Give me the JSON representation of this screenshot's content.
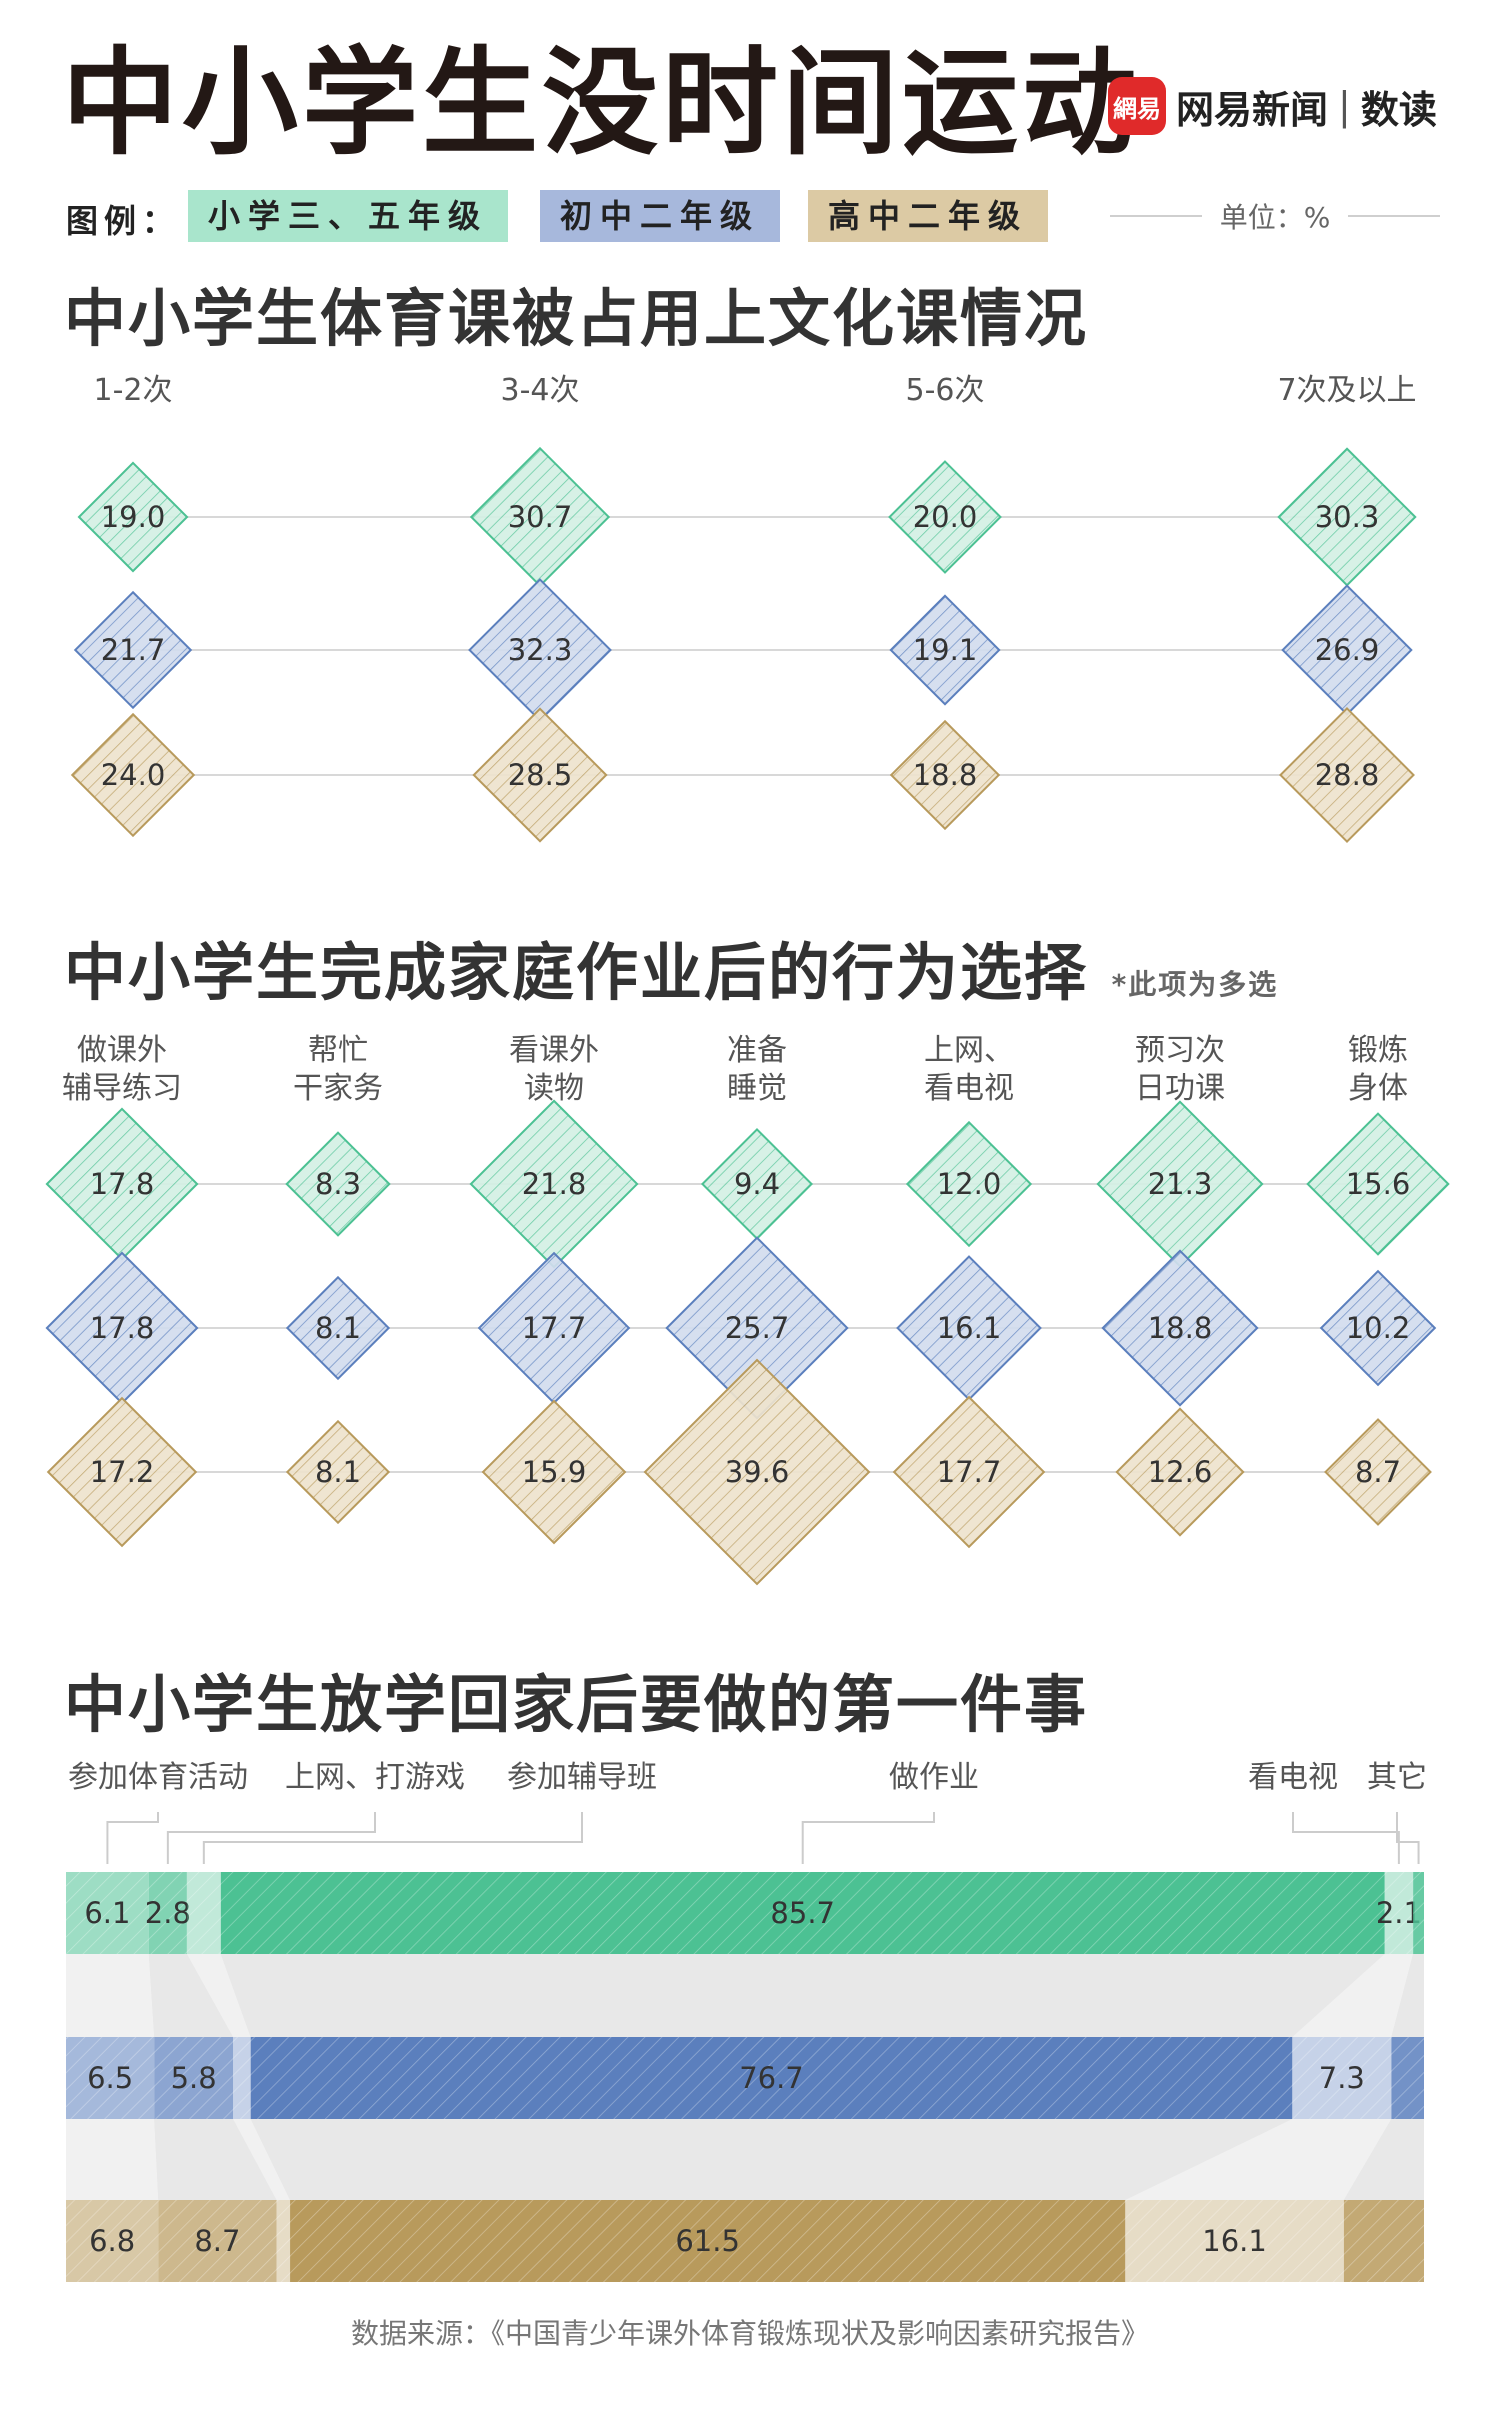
{
  "title": "中小学生没时间运动",
  "brand": {
    "logo_text": "網易",
    "name": "网易新闻",
    "divider": "|",
    "sub": "数读"
  },
  "legend": {
    "label": "图例：",
    "items": [
      {
        "label": "小学三、五年级",
        "color": "#4cc193",
        "box_color": "#a9e5cc"
      },
      {
        "label": "初中二年级",
        "color": "#5b7fbd",
        "box_color": "#a7b8dc"
      },
      {
        "label": "高中二年级",
        "color": "#b89a5c",
        "box_color": "#dccaa4"
      }
    ]
  },
  "unit": "单位：%",
  "source": "数据来源：《中国青少年课外体育锻炼现状及影响因素研究报告》",
  "chart_data": [
    {
      "type": "scatter",
      "title": "中小学生体育课被占用上文化课情况",
      "categories": [
        "1-2次",
        "3-4次",
        "5-6次",
        "7次及以上"
      ],
      "series": [
        {
          "name": "小学三、五年级",
          "values": [
            19.0,
            30.7,
            20.0,
            30.3
          ]
        },
        {
          "name": "初中二年级",
          "values": [
            21.7,
            32.3,
            19.1,
            26.9
          ]
        },
        {
          "name": "高中二年级",
          "values": [
            24.0,
            28.5,
            18.8,
            28.8
          ]
        }
      ]
    },
    {
      "type": "scatter",
      "title": "中小学生完成家庭作业后的行为选择",
      "note": "*此项为多选",
      "categories": [
        "做课外\n辅导练习",
        "帮忙\n干家务",
        "看课外\n读物",
        "准备\n睡觉",
        "上网、\n看电视",
        "预习次\n日功课",
        "锻炼\n身体"
      ],
      "series": [
        {
          "name": "小学三、五年级",
          "values": [
            17.8,
            8.3,
            21.8,
            9.4,
            12.0,
            21.3,
            15.6
          ]
        },
        {
          "name": "初中二年级",
          "values": [
            17.8,
            8.1,
            17.7,
            25.7,
            16.1,
            18.8,
            10.2
          ]
        },
        {
          "name": "高中二年级",
          "values": [
            17.2,
            8.1,
            15.9,
            39.6,
            17.7,
            12.6,
            8.7
          ]
        }
      ]
    },
    {
      "type": "bar",
      "stacked": true,
      "title": "中小学生放学回家后要做的第一件事",
      "categories": [
        "参加体育活动",
        "上网、打游戏",
        "参加辅导班",
        "做作业",
        "看电视",
        "其它"
      ],
      "series": [
        {
          "name": "小学三、五年级",
          "values": [
            6.1,
            2.8,
            2.5,
            85.7,
            2.1,
            0.8
          ]
        },
        {
          "name": "初中二年级",
          "values": [
            6.5,
            5.8,
            1.3,
            76.7,
            7.3,
            2.4
          ]
        },
        {
          "name": "高中二年级",
          "values": [
            6.8,
            8.7,
            1.0,
            61.5,
            16.1,
            5.9
          ]
        }
      ],
      "data_labels": [
        [
          "6.1",
          "2.8",
          "",
          "85.7",
          "2.1",
          ""
        ],
        [
          "6.5",
          "5.8",
          "",
          "76.7",
          "7.3",
          ""
        ],
        [
          "6.8",
          "8.7",
          "",
          "61.5",
          "16.1",
          ""
        ]
      ]
    }
  ]
}
